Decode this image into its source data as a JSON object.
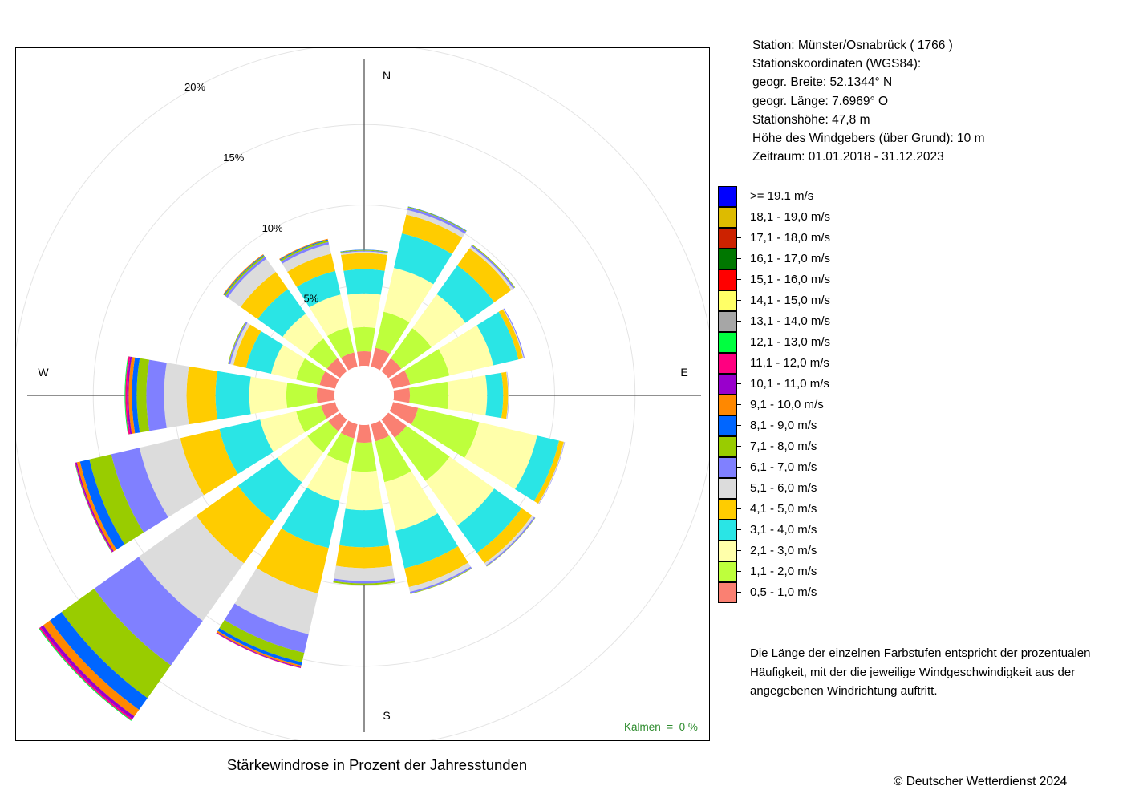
{
  "title": "Stärkewindrose in Prozent der Jahresstunden",
  "station": {
    "line_station": "Station:  Münster/Osnabrück  ( 1766 )",
    "line_coords_header": "Stationskoordinaten (WGS84):",
    "line_lat": "geogr. Breite: 52.1344° N",
    "line_lon": "geogr. Länge:   7.6969° O",
    "line_height": "Stationshöhe: 47,8 m",
    "line_sensor": "Höhe des Windgebers (über Grund): 10 m",
    "line_period": "Zeitraum: 01.01.2018 - 31.12.2023"
  },
  "calm_label": "Kalmen  =  0 %",
  "note": {
    "line1": "Die Länge der einzelnen Farbstufen entspricht der prozentualen",
    "line2": "Häufigkeit, mit der die jeweilige Windgeschwindigkeit aus der",
    "line3": "angegebenen Windrichtung auftritt."
  },
  "copyright": "© Deutscher Wetterdienst  2024",
  "chart_data": {
    "type": "wind_rose",
    "title": "Stärkewindrose in Prozent der Jahresstunden",
    "unit": "%",
    "rlim": [
      0,
      20
    ],
    "ring_labels": [
      "5%",
      "10%",
      "15%",
      "20%"
    ],
    "ring_values": [
      5,
      10,
      15,
      20
    ],
    "compass_labels": [
      "N",
      "E",
      "S",
      "W"
    ],
    "calm_percent": 0,
    "directions": [
      "N",
      "NNE",
      "NE",
      "ENE",
      "E",
      "ESE",
      "SE",
      "SSE",
      "S",
      "SSW",
      "SW",
      "WSW",
      "W",
      "WNW",
      "NW",
      "NNW"
    ],
    "direction_angles": [
      0,
      22.5,
      45,
      67.5,
      90,
      112.5,
      135,
      157.5,
      180,
      202.5,
      225,
      247.5,
      270,
      292.5,
      315,
      337.5
    ],
    "speed_classes": [
      {
        "label": "0,5 - 1,0 m/s",
        "color": "#FA8072"
      },
      {
        "label": "1,1 - 2,0 m/s",
        "color": "#BEFF3C"
      },
      {
        "label": "2,1 - 3,0 m/s",
        "color": "#FFFFAA"
      },
      {
        "label": "3,1 - 4,0 m/s",
        "color": "#2AE5E5"
      },
      {
        "label": "4,1 - 5,0 m/s",
        "color": "#FFCC00"
      },
      {
        "label": "5,1 - 6,0 m/s",
        "color": "#DCDCDC"
      },
      {
        "label": "6,1 - 7,0 m/s",
        "color": "#8080FF"
      },
      {
        "label": "7,1 - 8,0 m/s",
        "color": "#99CC00"
      },
      {
        "label": "8,1 - 9,0 m/s",
        "color": "#0066FF"
      },
      {
        "label": "9,1 - 10,0 m/s",
        "color": "#FF8800"
      },
      {
        "label": "10,1 - 11,0 m/s",
        "color": "#9900CC"
      },
      {
        "label": "11,1 - 12,0 m/s",
        "color": "#FF0080"
      },
      {
        "label": "12,1 - 13,0 m/s",
        "color": "#00FF40"
      },
      {
        "label": "13,1 - 14,0 m/s",
        "color": "#A6A6A6"
      },
      {
        "label": "14,1 - 15,0 m/s",
        "color": "#FFFF66"
      },
      {
        "label": "15,1 - 16,0 m/s",
        "color": "#FF0000"
      },
      {
        "label": "16,1 - 17,0 m/s",
        "color": "#007700"
      },
      {
        "label": "17,1 - 18,0 m/s",
        "color": "#CC2200"
      },
      {
        "label": "18,1 - 19,0 m/s",
        "color": "#DDBB00"
      },
      {
        "label": ">= 19.1 m/s",
        "color": "#0000FF"
      }
    ],
    "series": [
      {
        "direction": "N",
        "values": [
          0.9,
          1.5,
          2.1,
          1.5,
          1.0,
          0.1,
          0.05,
          0.05,
          0.02,
          0,
          0,
          0,
          0,
          0,
          0,
          0,
          0,
          0,
          0,
          0
        ]
      },
      {
        "direction": "NNE",
        "values": [
          1.2,
          2.3,
          2.8,
          2.2,
          1.2,
          0.3,
          0.15,
          0.05,
          0.02,
          0,
          0,
          0,
          0,
          0,
          0,
          0,
          0,
          0,
          0,
          0
        ]
      },
      {
        "direction": "NE",
        "values": [
          1.0,
          2.3,
          2.6,
          2.2,
          1.3,
          0.15,
          0.1,
          0.05,
          0,
          0,
          0,
          0,
          0,
          0,
          0,
          0,
          0,
          0,
          0,
          0
        ]
      },
      {
        "direction": "ENE",
        "values": [
          1.1,
          2.5,
          2.8,
          1.6,
          0.3,
          0.05,
          0.05,
          0,
          0,
          0,
          0,
          0,
          0,
          0,
          0,
          0,
          0,
          0,
          0,
          0
        ]
      },
      {
        "direction": "E",
        "values": [
          1.0,
          2.4,
          2.4,
          1.0,
          0.3,
          0.04,
          0.02,
          0,
          0,
          0,
          0,
          0,
          0,
          0,
          0,
          0,
          0,
          0,
          0,
          0
        ]
      },
      {
        "direction": "ESE",
        "values": [
          1.6,
          3.9,
          3.7,
          1.4,
          0.3,
          0.05,
          0.02,
          0,
          0,
          0,
          0,
          0,
          0,
          0,
          0,
          0,
          0,
          0,
          0,
          0
        ]
      },
      {
        "direction": "SE",
        "values": [
          1.4,
          3.3,
          3.4,
          2.1,
          0.8,
          0.15,
          0.08,
          0.02,
          0,
          0,
          0,
          0,
          0,
          0,
          0,
          0,
          0,
          0,
          0,
          0
        ]
      },
      {
        "direction": "SSE",
        "values": [
          1.1,
          2.6,
          3.1,
          2.4,
          1.2,
          0.3,
          0.1,
          0.04,
          0,
          0,
          0,
          0,
          0,
          0,
          0,
          0,
          0,
          0,
          0,
          0
        ]
      },
      {
        "direction": "S",
        "values": [
          1.1,
          1.8,
          2.4,
          2.3,
          1.3,
          0.8,
          0.15,
          0.1,
          0,
          0,
          0,
          0,
          0,
          0,
          0,
          0,
          0,
          0,
          0,
          0
        ]
      },
      {
        "direction": "SSW",
        "values": [
          0.9,
          1.6,
          2.4,
          3.0,
          2.9,
          2.6,
          1.2,
          0.6,
          0.2,
          0.1,
          0.05,
          0.02,
          0,
          0,
          0,
          0,
          0,
          0,
          0,
          0
        ]
      },
      {
        "direction": "SW",
        "values": [
          0.9,
          1.6,
          2.3,
          3.0,
          3.2,
          4.4,
          3.4,
          2.5,
          0.9,
          0.5,
          0.2,
          0.1,
          0.05,
          0,
          0,
          0,
          0,
          0,
          0,
          0
        ]
      },
      {
        "direction": "WSW",
        "values": [
          0.9,
          1.6,
          2.3,
          2.6,
          2.5,
          2.6,
          1.8,
          1.4,
          0.6,
          0.2,
          0.08,
          0.04,
          0.02,
          0,
          0,
          0,
          0,
          0,
          0,
          0
        ]
      },
      {
        "direction": "W",
        "values": [
          1.1,
          1.9,
          2.3,
          2.1,
          1.8,
          1.4,
          1.1,
          0.6,
          0.3,
          0.2,
          0.1,
          0.1,
          0.05,
          0,
          0,
          0,
          0,
          0,
          0,
          0
        ]
      },
      {
        "direction": "WNW",
        "values": [
          1.0,
          1.5,
          1.6,
          1.6,
          0.8,
          0.2,
          0.1,
          0.05,
          0,
          0,
          0,
          0,
          0,
          0,
          0,
          0,
          0,
          0,
          0,
          0
        ]
      },
      {
        "direction": "NW",
        "values": [
          1.0,
          1.5,
          1.9,
          1.9,
          1.3,
          1.0,
          0.15,
          0.1,
          0.05,
          0.05,
          0,
          0,
          0,
          0,
          0,
          0,
          0,
          0,
          0,
          0
        ]
      },
      {
        "direction": "NNW",
        "values": [
          0.9,
          1.6,
          2.1,
          1.5,
          1.1,
          0.6,
          0.15,
          0.1,
          0.05,
          0.05,
          0,
          0,
          0,
          0,
          0,
          0,
          0,
          0,
          0,
          0
        ]
      }
    ]
  }
}
